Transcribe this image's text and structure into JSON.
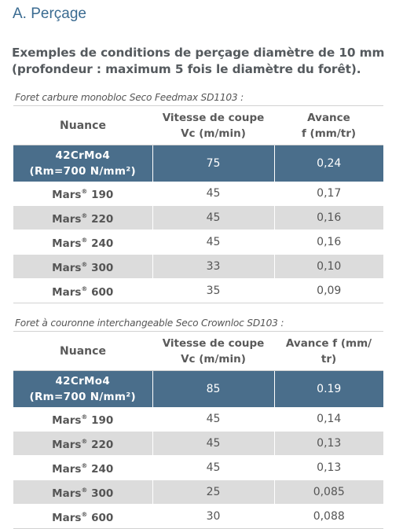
{
  "section_title": "A. Perçage",
  "intro": {
    "line1": "Exemples de conditions de perçage diamètre de 10 mm",
    "line2": "(profondeur : maximum 5 fois le diamètre du forêt)."
  },
  "tables": [
    {
      "caption": "Foret carbure monobloc Seco Feedmax SD1103 :",
      "headers": {
        "nuance": "Nuance",
        "vitesse_l1": "Vitesse de coupe",
        "vitesse_l2": "Vc (m/min)",
        "avance_l1": "Avance",
        "avance_l2": "f (mm/tr)"
      },
      "highlight": {
        "l1": "42CrMo4",
        "l2": "(Rm=700 N/mm²)",
        "vc": "75",
        "f": "0,24"
      },
      "rows": [
        {
          "grade": "Mars",
          "num": "190",
          "vc": "45",
          "f": "0,17"
        },
        {
          "grade": "Mars",
          "num": "220",
          "vc": "45",
          "f": "0,16"
        },
        {
          "grade": "Mars",
          "num": "240",
          "vc": "45",
          "f": "0,16"
        },
        {
          "grade": "Mars",
          "num": "300",
          "vc": "33",
          "f": "0,10"
        },
        {
          "grade": "Mars",
          "num": "600",
          "vc": "35",
          "f": "0,09"
        }
      ]
    },
    {
      "caption": "Foret à couronne interchangeable Seco Crownloc SD103 :",
      "headers": {
        "nuance": "Nuance",
        "vitesse_l1": "Vitesse de coupe",
        "vitesse_l2": "Vc (m/min)",
        "avance_l1": "Avance f (mm/",
        "avance_l2": "tr)"
      },
      "highlight": {
        "l1": "42CrMo4",
        "l2": "(Rm=700 N/mm²)",
        "vc": "85",
        "f": "0.19"
      },
      "rows": [
        {
          "grade": "Mars",
          "num": "190",
          "vc": "45",
          "f": "0,14"
        },
        {
          "grade": "Mars",
          "num": "220",
          "vc": "45",
          "f": "0,13"
        },
        {
          "grade": "Mars",
          "num": "240",
          "vc": "45",
          "f": "0,13"
        },
        {
          "grade": "Mars",
          "num": "300",
          "vc": "25",
          "f": "0,085"
        },
        {
          "grade": "Mars",
          "num": "600",
          "vc": "30",
          "f": "0,088"
        }
      ]
    }
  ],
  "registered_mark": "®"
}
